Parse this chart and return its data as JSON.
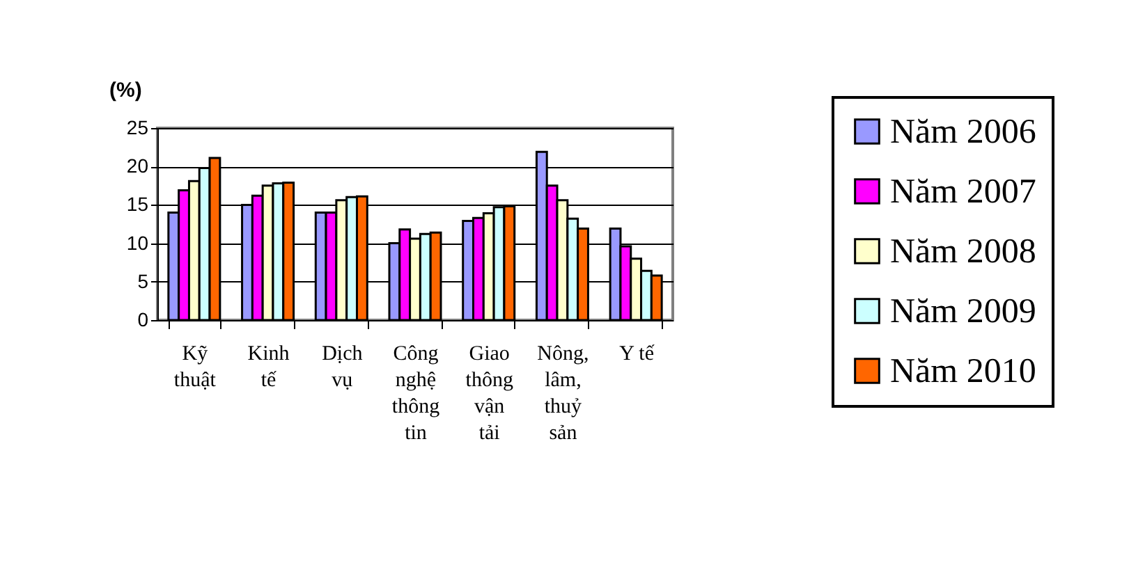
{
  "chart_data": {
    "type": "bar",
    "ylabel": "(%)",
    "categories": [
      "Kỹ thuật",
      "Kinh tế",
      "Dịch vụ",
      "Công nghệ thông tin",
      "Giao thông vận tải",
      "Nông, lâm, thuỷ sản",
      "Y tế"
    ],
    "series": [
      {
        "name": "Năm 2006",
        "color": "#9999ff",
        "values": [
          14,
          15,
          14,
          10,
          12.9,
          21.9,
          11.9
        ]
      },
      {
        "name": "Năm 2007",
        "color": "#ff00ff",
        "values": [
          16.9,
          16.2,
          14,
          11.8,
          13.3,
          17.5,
          9.6
        ]
      },
      {
        "name": "Năm 2008",
        "color": "#ffffcc",
        "values": [
          18.1,
          17.5,
          15.6,
          10.6,
          13.9,
          15.6,
          8
        ]
      },
      {
        "name": "Năm 2009",
        "color": "#ccffff",
        "values": [
          19.8,
          17.8,
          16,
          11.2,
          14.7,
          13.2,
          6.4
        ]
      },
      {
        "name": "Năm 2010",
        "color": "#ff6600",
        "values": [
          21.1,
          17.9,
          16.1,
          11.4,
          14.8,
          11.9,
          5.8
        ]
      }
    ],
    "ylim": [
      0,
      25
    ],
    "yticks": [
      0,
      5,
      10,
      15,
      20,
      25
    ],
    "grid": "y",
    "legend": "right"
  }
}
